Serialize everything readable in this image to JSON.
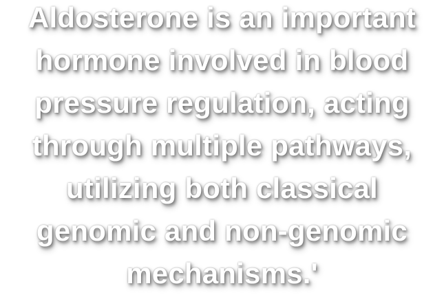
{
  "quote": {
    "lines": [
      "Aldosterone is an important",
      "hormone involved in blood",
      "pressure regulation, acting",
      "through multiple pathways,",
      "utilizing both classical",
      "genomic and non-genomic",
      "mechanisms.'"
    ],
    "text_color": "#ffffff",
    "background_color": "#ffffff"
  }
}
